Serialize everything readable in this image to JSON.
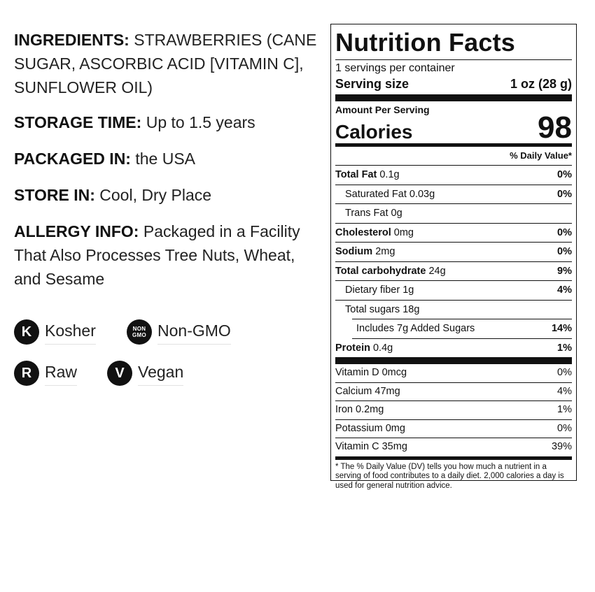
{
  "info": {
    "ingredients_label": "INGREDIENTS:",
    "ingredients_text": " STRAWBERRIES (CANE SUGAR, ASCORBIC ACID [VITAMIN C], SUNFLOWER OIL)",
    "storage_label": "STORAGE TIME:",
    "storage_text": " Up to 1.5 years",
    "packaged_label": "PACKAGED IN:",
    "packaged_text": " the USA",
    "store_label": "STORE IN:",
    "store_text": " Cool, Dry Place",
    "allergy_label": "ALLERGY INFO:",
    "allergy_text": " Packaged in a Facility That Also Processes Tree Nuts, Wheat, and Sesame"
  },
  "badges": {
    "kosher": {
      "icon": "K",
      "label": "Kosher"
    },
    "nongmo": {
      "icon_line1": "NON",
      "icon_line2": "GMO",
      "label": "Non-GMO"
    },
    "raw": {
      "icon": "R",
      "label": "Raw"
    },
    "vegan": {
      "icon": "V",
      "label": "Vegan"
    }
  },
  "nutrition": {
    "title": "Nutrition Facts",
    "servings": "1 servings per container",
    "serving_size_label": "Serving size",
    "serving_size_value": "1 oz (28 g)",
    "amount_per_serving": "Amount Per Serving",
    "calories_label": "Calories",
    "calories_value": "98",
    "dv_header": "% Daily Value*",
    "total_fat": {
      "name": "Total Fat",
      "amount": " 0.1g",
      "dv": "0%"
    },
    "sat_fat": {
      "name": "Saturated Fat 0.03g",
      "dv": "0%"
    },
    "trans_fat": {
      "name": "Trans Fat 0g"
    },
    "cholesterol": {
      "name": "Cholesterol",
      "amount": " 0mg",
      "dv": "0%"
    },
    "sodium": {
      "name": "Sodium",
      "amount": " 2mg",
      "dv": "0%"
    },
    "carb": {
      "name": "Total carbohydrate",
      "amount": " 24g",
      "dv": "9%"
    },
    "fiber": {
      "name": "Dietary fiber 1g",
      "dv": "4%"
    },
    "sugars": {
      "name": "Total sugars 18g"
    },
    "added_sugars": {
      "name": "Includes 7g Added Sugars",
      "dv": "14%"
    },
    "protein": {
      "name": "Protein",
      "amount": " 0.4g",
      "dv": "1%"
    },
    "vitamins": [
      {
        "name": "Vitamin D 0mcg",
        "dv": "0%"
      },
      {
        "name": "Calcium 47mg",
        "dv": "4%"
      },
      {
        "name": "Iron 0.2mg",
        "dv": "1%"
      },
      {
        "name": "Potassium 0mg",
        "dv": "0%"
      },
      {
        "name": "Vitamin C 35mg",
        "dv": "39%"
      }
    ],
    "footnote": "* The % Daily Value (DV) tells you how much a nutrient in a serving of food contributes to a daily diet. 2,000 calories a day is used for general nutrition advice."
  }
}
